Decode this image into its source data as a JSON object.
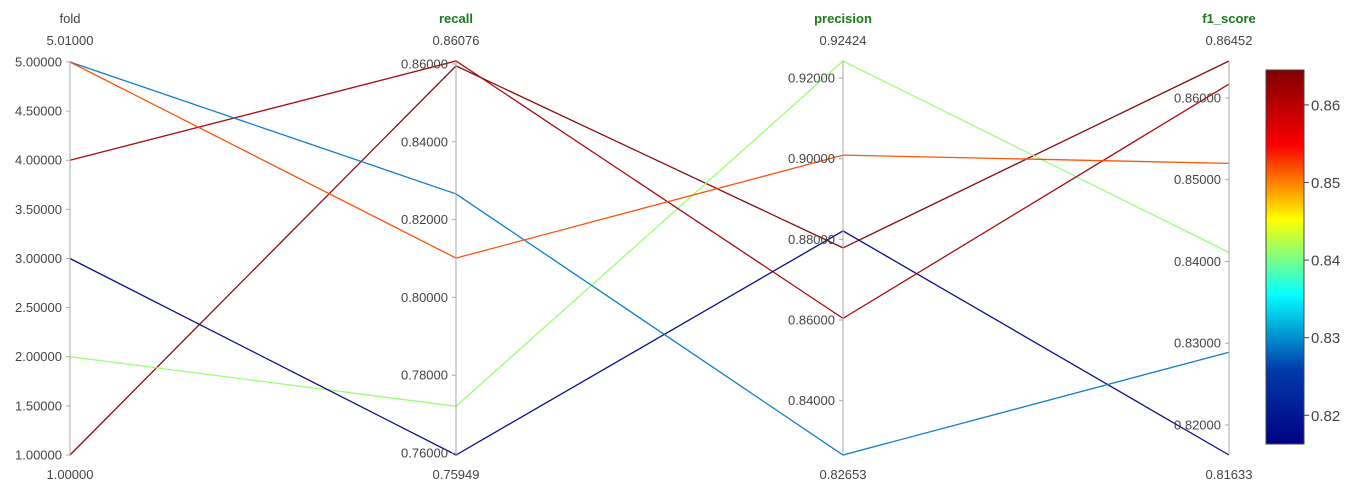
{
  "chart_data": {
    "type": "parallel_coordinates",
    "dimensions": [
      {
        "name": "fold",
        "title_color": "#444444",
        "title_bold": false,
        "range": [
          1.0,
          5.01
        ],
        "range_labels": {
          "max": "5.01000",
          "min": "1.00000"
        },
        "ticks": [
          {
            "value": 5.0,
            "label": "5.00000"
          },
          {
            "value": 4.5,
            "label": "4.50000"
          },
          {
            "value": 4.0,
            "label": "4.00000"
          },
          {
            "value": 3.5,
            "label": "3.50000"
          },
          {
            "value": 3.0,
            "label": "3.00000"
          },
          {
            "value": 2.5,
            "label": "2.50000"
          },
          {
            "value": 2.0,
            "label": "2.00000"
          },
          {
            "value": 1.5,
            "label": "1.50000"
          },
          {
            "value": 1.0,
            "label": "1.00000"
          }
        ]
      },
      {
        "name": "recall",
        "title_color": "#1a7a1a",
        "title_bold": true,
        "range": [
          0.75949,
          0.86076
        ],
        "range_labels": {
          "max": "0.86076",
          "min": "0.75949"
        },
        "ticks": [
          {
            "value": 0.86,
            "label": "0.86000"
          },
          {
            "value": 0.84,
            "label": "0.84000"
          },
          {
            "value": 0.82,
            "label": "0.82000"
          },
          {
            "value": 0.8,
            "label": "0.80000"
          },
          {
            "value": 0.78,
            "label": "0.78000"
          },
          {
            "value": 0.76,
            "label": "0.76000"
          }
        ]
      },
      {
        "name": "precision",
        "title_color": "#1a7a1a",
        "title_bold": true,
        "range": [
          0.82653,
          0.92424
        ],
        "range_labels": {
          "max": "0.92424",
          "min": "0.82653"
        },
        "ticks": [
          {
            "value": 0.92,
            "label": "0.92000"
          },
          {
            "value": 0.9,
            "label": "0.90000"
          },
          {
            "value": 0.88,
            "label": "0.88000"
          },
          {
            "value": 0.86,
            "label": "0.86000"
          },
          {
            "value": 0.84,
            "label": "0.84000"
          }
        ]
      },
      {
        "name": "f1_score",
        "title_color": "#1a7a1a",
        "title_bold": true,
        "range": [
          0.81633,
          0.86452
        ],
        "range_labels": {
          "max": "0.86452",
          "min": "0.81633"
        },
        "ticks": [
          {
            "value": 0.86,
            "label": "0.86000"
          },
          {
            "value": 0.85,
            "label": "0.85000"
          },
          {
            "value": 0.84,
            "label": "0.84000"
          },
          {
            "value": 0.83,
            "label": "0.83000"
          },
          {
            "value": 0.82,
            "label": "0.82000"
          }
        ]
      }
    ],
    "lines": [
      {
        "values": [
          1.0,
          0.8595,
          0.8779,
          0.86452
        ],
        "color_value": 0.86452
      },
      {
        "values": [
          2.0,
          0.772,
          0.92424,
          0.8411
        ],
        "color_value": 0.8411
      },
      {
        "values": [
          3.0,
          0.75949,
          0.8821,
          0.81633
        ],
        "color_value": 0.81633
      },
      {
        "values": [
          4.0,
          0.86076,
          0.8604,
          0.8617
        ],
        "color_value": 0.8617
      },
      {
        "values": [
          5.0,
          0.8266,
          0.82653,
          0.8289
        ],
        "color_value": 0.8289
      },
      {
        "values": [
          5.0,
          0.8101,
          0.9009,
          0.852
        ],
        "color_value": 0.852
      }
    ],
    "colorscale": {
      "name": "Jet",
      "range": [
        0.8163,
        0.8645
      ],
      "stops": [
        "#000083",
        "#003CAA",
        "#05FFFF",
        "#FFFF00",
        "#FA0000",
        "#800000"
      ],
      "ticks": [
        {
          "value": 0.82,
          "label": "0.82"
        },
        {
          "value": 0.83,
          "label": "0.83"
        },
        {
          "value": 0.84,
          "label": "0.84"
        },
        {
          "value": 0.85,
          "label": "0.85"
        },
        {
          "value": 0.86,
          "label": "0.86"
        }
      ]
    }
  }
}
